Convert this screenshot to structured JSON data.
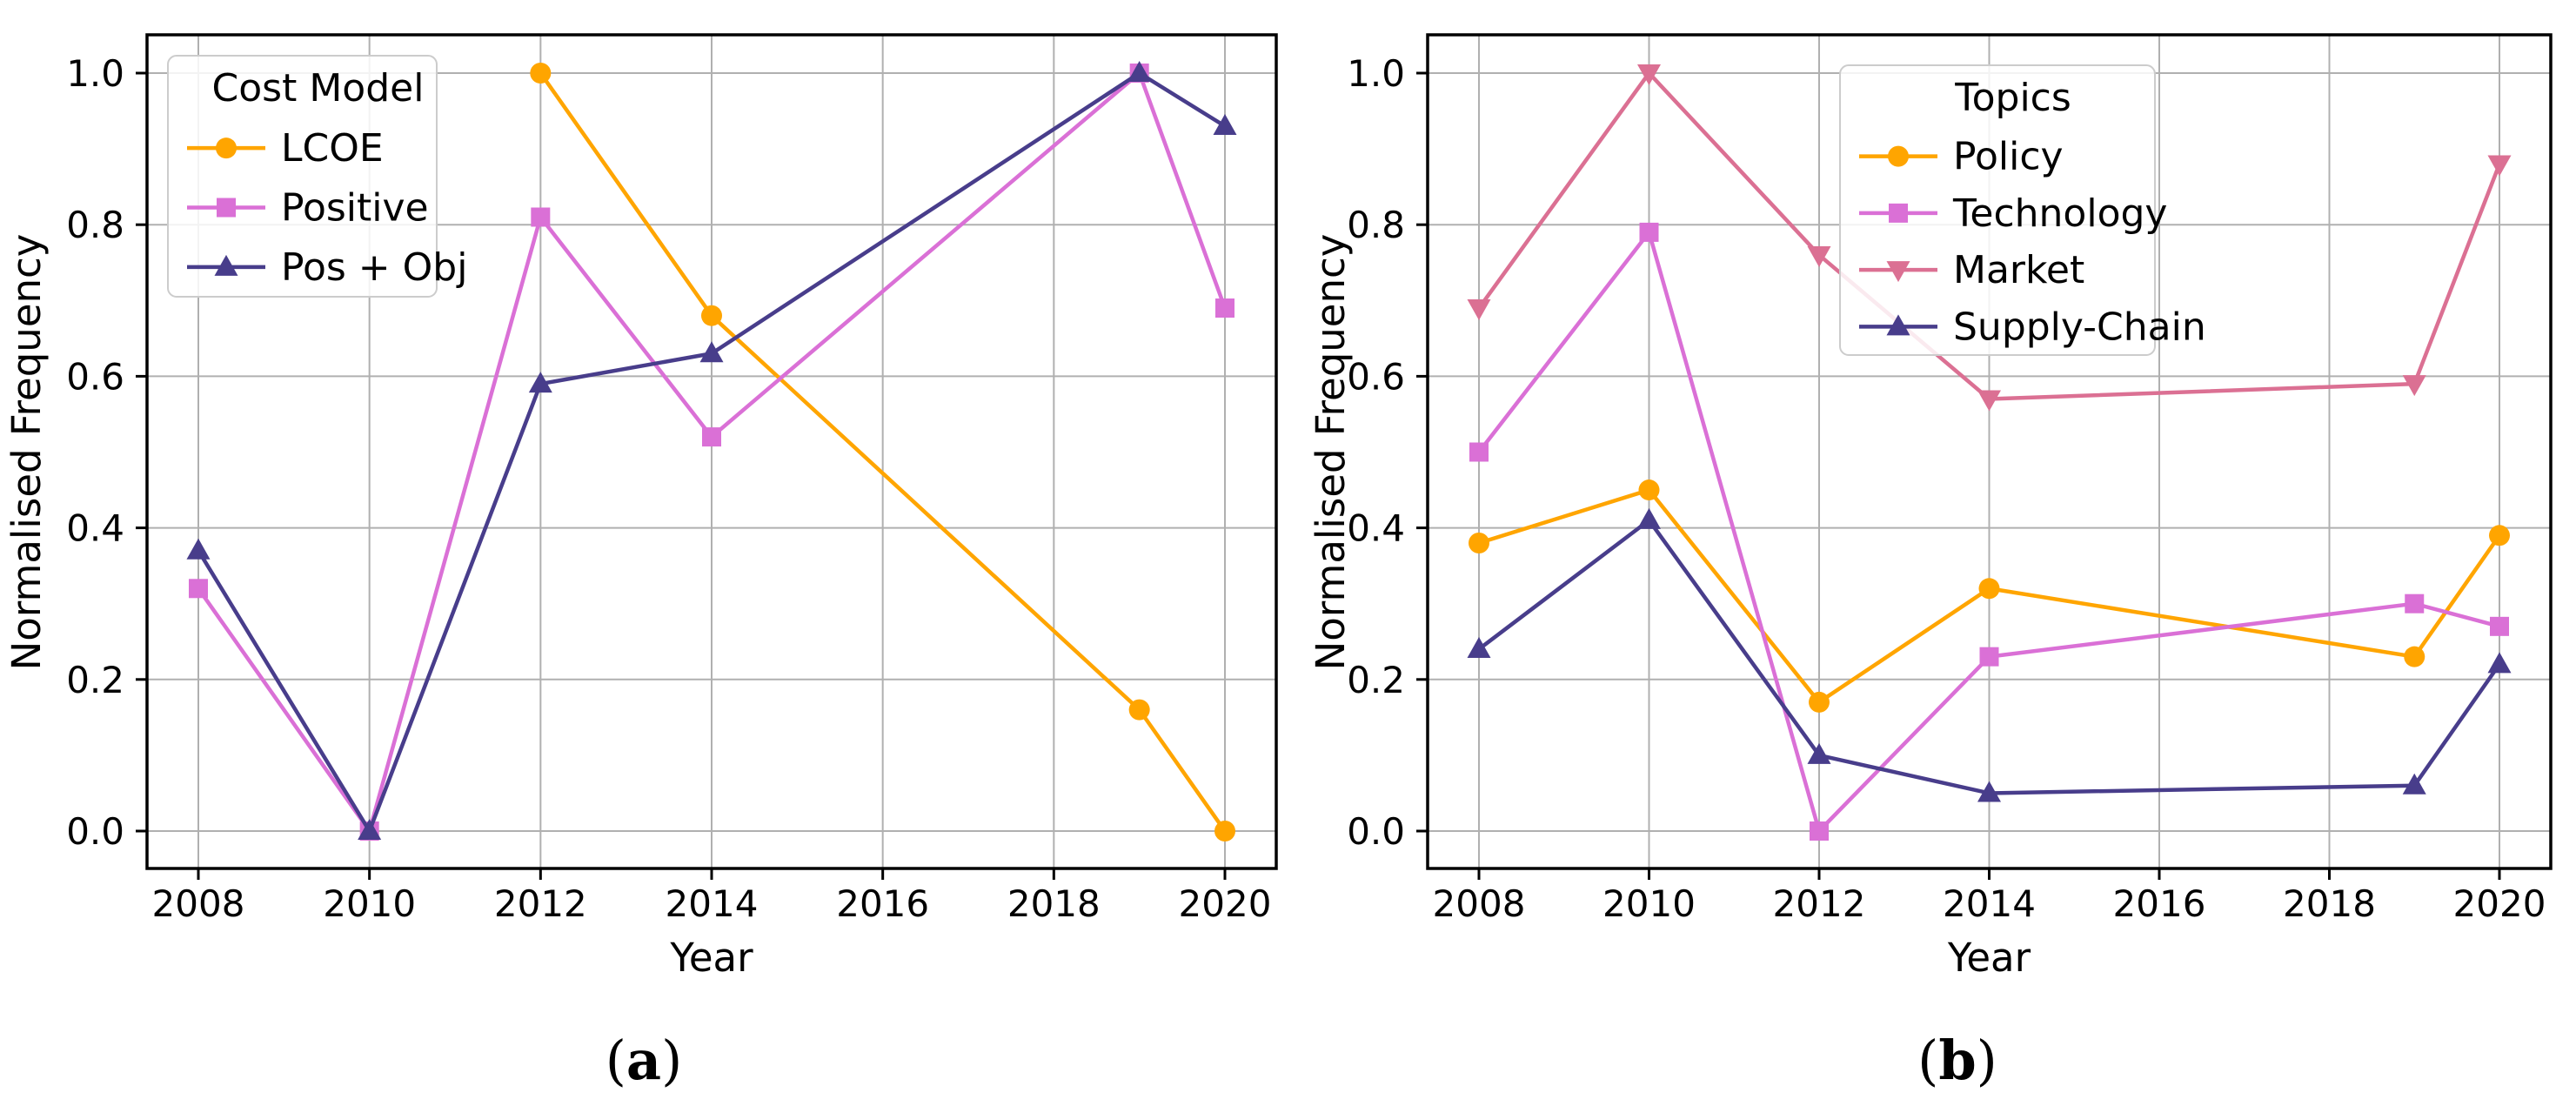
{
  "figure": {
    "ylabel": "Normalised Frequency",
    "xlabel": "Year",
    "caption_a": "(a)",
    "caption_b": "(b)"
  },
  "colors": {
    "orange": "#FFA500",
    "orchid": "#DA70D6",
    "palevioletred": "#DB7093",
    "darkslateblue": "#483D8B",
    "grid": "#B0B0B0",
    "spine": "#000000",
    "legend_border": "#CCCCCC",
    "legend_fill": "#FFFFFF"
  },
  "chart_data": [
    {
      "type": "line",
      "panel": "a",
      "caption": "(a)",
      "legend_title": "Cost Model",
      "legend_position": "upper-left",
      "xlabel": "Year",
      "ylabel": "Normalised Frequency",
      "x_ticks": [
        2008,
        2010,
        2012,
        2014,
        2016,
        2018,
        2020
      ],
      "y_ticks": [
        0.0,
        0.2,
        0.4,
        0.6,
        0.8,
        1.0
      ],
      "xlim": [
        2007.4,
        2020.6
      ],
      "ylim": [
        -0.05,
        1.05
      ],
      "grid": true,
      "series": [
        {
          "name": "LCOE",
          "marker": "circle",
          "color": "#FFA500",
          "x": [
            2012,
            2014,
            2019,
            2020
          ],
          "y": [
            1.0,
            0.68,
            0.16,
            0.0
          ]
        },
        {
          "name": "Positive",
          "marker": "square",
          "color": "#DA70D6",
          "x": [
            2008,
            2010,
            2012,
            2014,
            2019,
            2020
          ],
          "y": [
            0.32,
            0.0,
            0.81,
            0.52,
            1.0,
            0.69
          ]
        },
        {
          "name": "Pos + Obj",
          "marker": "triangle-up",
          "color": "#483D8B",
          "x": [
            2008,
            2010,
            2012,
            2014,
            2019,
            2020
          ],
          "y": [
            0.37,
            0.0,
            0.59,
            0.63,
            1.0,
            0.93
          ]
        }
      ]
    },
    {
      "type": "line",
      "panel": "b",
      "caption": "(b)",
      "legend_title": "Topics",
      "legend_position": "upper-right",
      "xlabel": "Year",
      "ylabel": "Normalised Frequency",
      "x_ticks": [
        2008,
        2010,
        2012,
        2014,
        2016,
        2018,
        2020
      ],
      "y_ticks": [
        0.0,
        0.2,
        0.4,
        0.6,
        0.8,
        1.0
      ],
      "xlim": [
        2007.4,
        2020.6
      ],
      "ylim": [
        -0.05,
        1.05
      ],
      "grid": true,
      "series": [
        {
          "name": "Policy",
          "marker": "circle",
          "color": "#FFA500",
          "x": [
            2008,
            2010,
            2012,
            2014,
            2019,
            2020
          ],
          "y": [
            0.38,
            0.45,
            0.17,
            0.32,
            0.23,
            0.39
          ]
        },
        {
          "name": "Technology",
          "marker": "square",
          "color": "#DA70D6",
          "x": [
            2008,
            2010,
            2012,
            2014,
            2019,
            2020
          ],
          "y": [
            0.5,
            0.79,
            0.0,
            0.23,
            0.3,
            0.27
          ]
        },
        {
          "name": "Market",
          "marker": "triangle-down",
          "color": "#DB7093",
          "x": [
            2008,
            2010,
            2012,
            2014,
            2019,
            2020
          ],
          "y": [
            0.69,
            1.0,
            0.76,
            0.57,
            0.59,
            0.88
          ]
        },
        {
          "name": "Supply-Chain",
          "marker": "triangle-up",
          "color": "#483D8B",
          "x": [
            2008,
            2010,
            2012,
            2014,
            2019,
            2020
          ],
          "y": [
            0.24,
            0.41,
            0.1,
            0.05,
            0.06,
            0.22
          ]
        }
      ]
    }
  ]
}
